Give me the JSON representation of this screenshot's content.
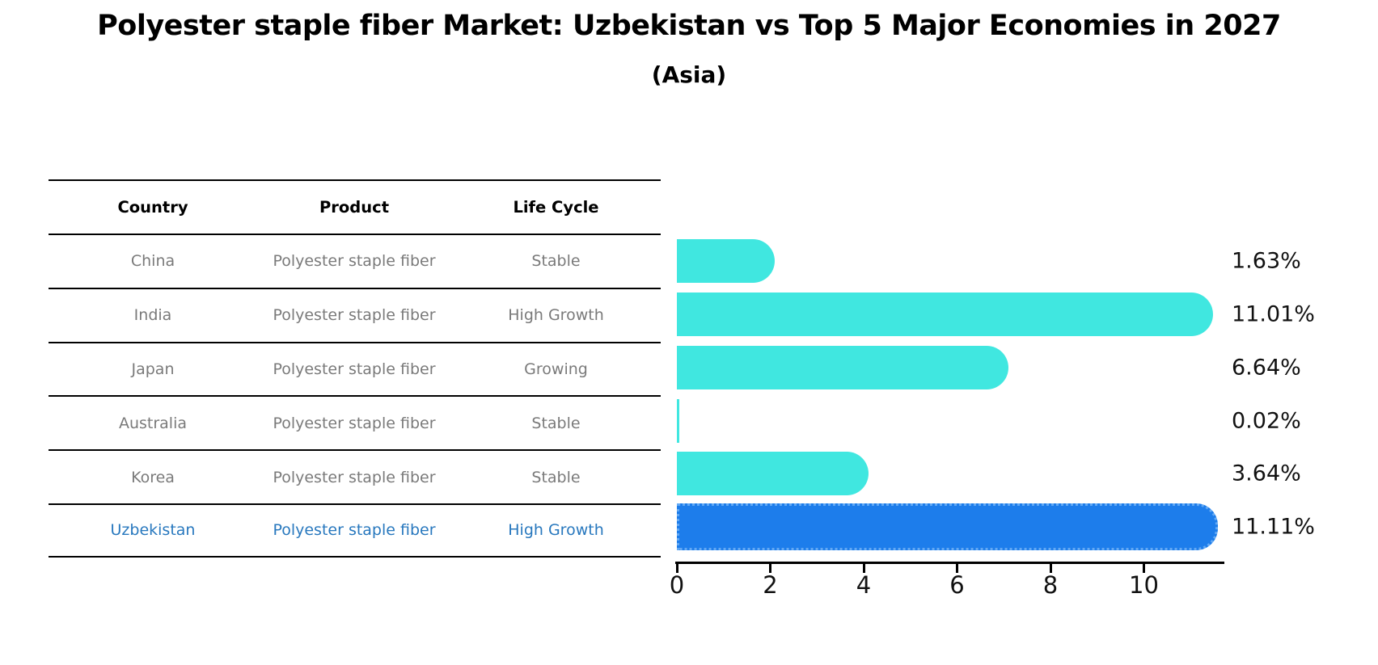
{
  "figure": {
    "title": "Polyester staple fiber Market: Uzbekistan vs Top 5 Major Economies in 2027",
    "subtitle": "(Asia)"
  },
  "table": {
    "headers": [
      "Country",
      "Product",
      "Life Cycle"
    ],
    "rows": [
      {
        "country": "China",
        "product": "Polyester staple fiber",
        "life_cycle": "Stable",
        "highlight": false
      },
      {
        "country": "India",
        "product": "Polyester staple fiber",
        "life_cycle": "High Growth",
        "highlight": false
      },
      {
        "country": "Japan",
        "product": "Polyester staple fiber",
        "life_cycle": "Growing",
        "highlight": false
      },
      {
        "country": "Australia",
        "product": "Polyester staple fiber",
        "life_cycle": "Stable",
        "highlight": false
      },
      {
        "country": "Korea",
        "product": "Polyester staple fiber",
        "life_cycle": "Stable",
        "highlight": false
      },
      {
        "country": "Uzbekistan",
        "product": "Polyester staple fiber",
        "life_cycle": "High Growth",
        "highlight": true
      }
    ]
  },
  "chart_data": {
    "type": "bar",
    "orientation": "horizontal",
    "title": "Polyester staple fiber Market: Uzbekistan vs Top 5 Major Economies in 2027",
    "subtitle": "(Asia)",
    "categories": [
      "China",
      "India",
      "Japan",
      "Australia",
      "Korea",
      "Uzbekistan"
    ],
    "values": [
      1.63,
      11.01,
      6.64,
      0.02,
      3.64,
      11.11
    ],
    "value_labels": [
      "1.63%",
      "11.01%",
      "6.64%",
      "0.02%",
      "3.64%",
      "11.11%"
    ],
    "xlabel": "",
    "ylabel": "",
    "xlim": [
      0,
      11.7
    ],
    "xticks": [
      "0",
      "2",
      "4",
      "6",
      "8",
      "10"
    ],
    "grid": false,
    "legend": false,
    "highlight_index": 5
  },
  "colors": {
    "bar_default": "#40e7e0",
    "bar_highlight": "#1d7deb",
    "bar_highlight_border": "#63a9f4",
    "row_text": "#7a7a7a",
    "highlight_text": "#2878be",
    "header_text": "#000000",
    "axis": "#000000"
  }
}
